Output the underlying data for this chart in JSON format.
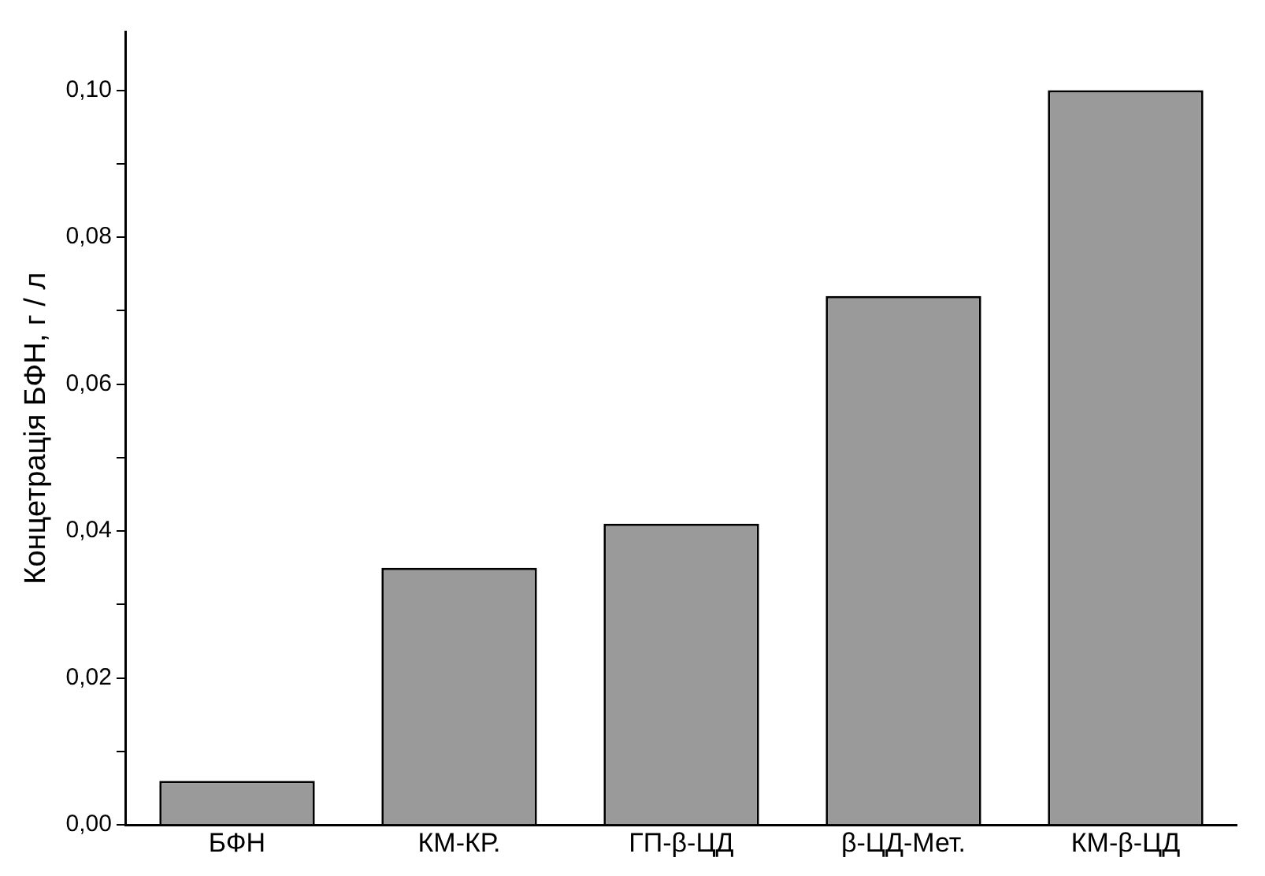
{
  "chart_data": {
    "type": "bar",
    "ylabel": "Концетрація БФН, г / л",
    "categories": [
      "БФН",
      "КМ-КР.",
      "ГП-β-ЦД",
      "β-ЦД-Мет.",
      "КМ-β-ЦД"
    ],
    "values": [
      0.006,
      0.035,
      0.041,
      0.072,
      0.1
    ],
    "color": "#9a9a9a",
    "ylim": [
      0,
      0.108
    ],
    "yticks": [
      {
        "value": 0,
        "label": "0,00"
      },
      {
        "value": 0.01,
        "label": null
      },
      {
        "value": 0.02,
        "label": "0,02"
      },
      {
        "value": 0.03,
        "label": null
      },
      {
        "value": 0.04,
        "label": "0,04"
      },
      {
        "value": 0.05,
        "label": null
      },
      {
        "value": 0.06,
        "label": "0,06"
      },
      {
        "value": 0.07,
        "label": null
      },
      {
        "value": 0.08,
        "label": "0,08"
      },
      {
        "value": 0.09,
        "label": null
      },
      {
        "value": 0.1,
        "label": "0,10"
      }
    ],
    "grid": false,
    "legend": false
  }
}
